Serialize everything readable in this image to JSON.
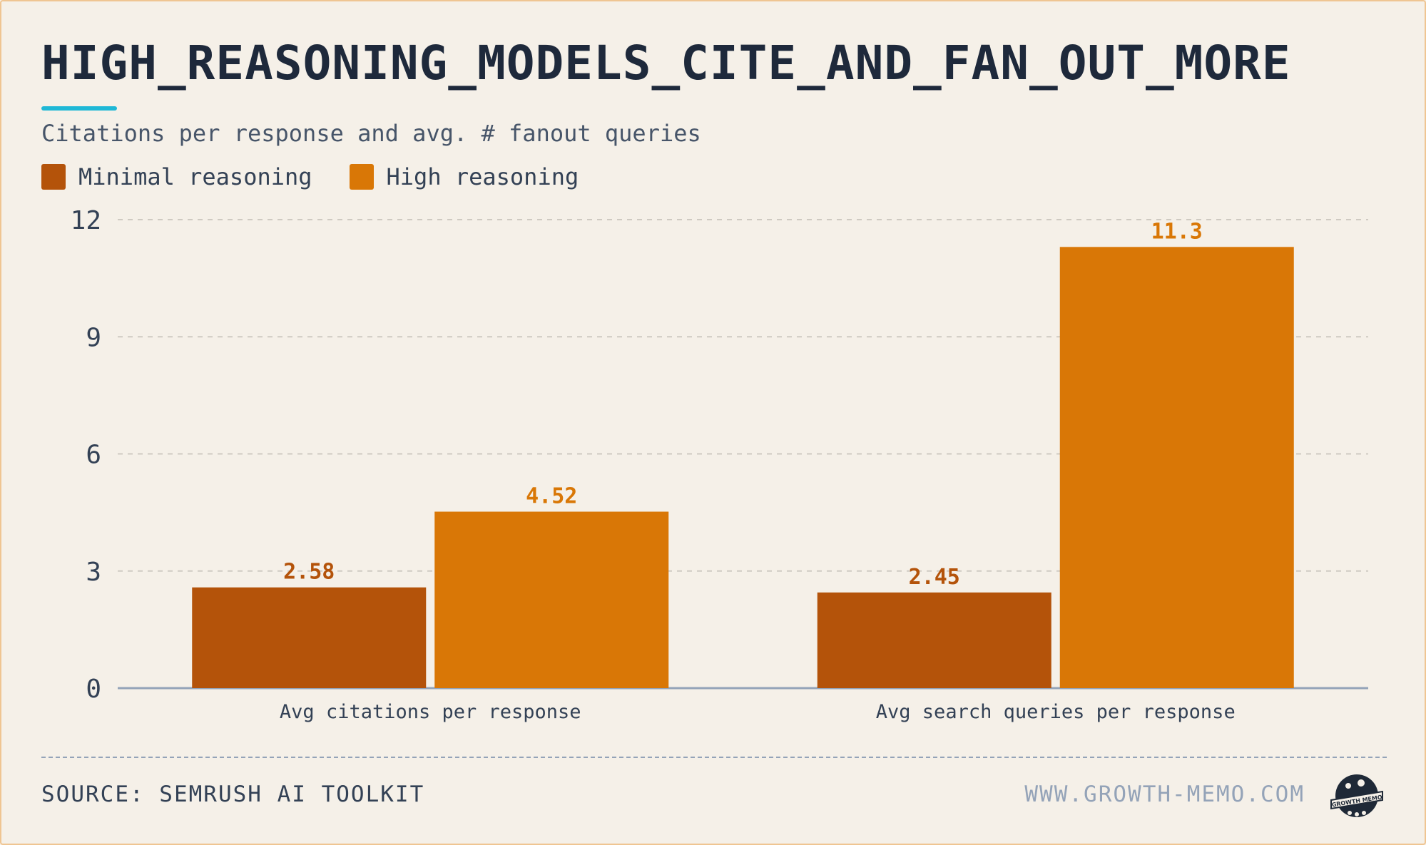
{
  "header": {
    "title": "HIGH_REASONING_MODELS_CITE_AND_FAN_OUT_MORE",
    "subtitle": "Citations per response and avg. # fanout queries"
  },
  "footer": {
    "source": "SOURCE: SEMRUSH AI TOOLKIT",
    "website": "WWW.GROWTH-MEMO.COM",
    "logo_text": "GROWTH MEMO"
  },
  "colors": {
    "accent": "#1fb8d6",
    "minimal": "#b4530a",
    "high": "#d97706",
    "grid": "#cfcac2",
    "axis": "#94a3b8"
  },
  "legend": {
    "items": [
      {
        "label": "Minimal reasoning",
        "color": "#b4530a"
      },
      {
        "label": "High reasoning",
        "color": "#d97706"
      }
    ]
  },
  "chart_data": {
    "type": "bar",
    "title": "HIGH_REASONING_MODELS_CITE_AND_FAN_OUT_MORE",
    "subtitle": "Citations per response and avg. # fanout queries",
    "categories": [
      "Avg citations per response",
      "Avg search queries per response"
    ],
    "series": [
      {
        "name": "Minimal reasoning",
        "values": [
          2.58,
          2.45
        ],
        "labels": [
          "2.58",
          "2.45"
        ],
        "color": "#b4530a"
      },
      {
        "name": "High reasoning",
        "values": [
          4.52,
          11.3
        ],
        "labels": [
          "4.52",
          "11.3"
        ],
        "color": "#d97706"
      }
    ],
    "ylim": [
      0,
      12
    ],
    "yticks": [
      "0",
      "3",
      "6",
      "9",
      "12"
    ],
    "grid": true,
    "legend_position": "top-left"
  }
}
